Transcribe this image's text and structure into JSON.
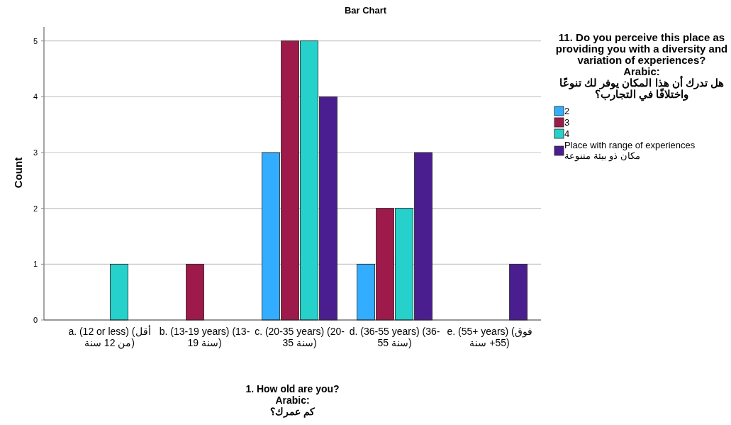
{
  "chart_data": {
    "type": "bar",
    "title": "Bar Chart",
    "xlabel": "1. How old are you?\nArabic:\nكم عمرك؟",
    "ylabel": "Count",
    "categories": [
      "a. (12 or less) (أقل من 12 سنة)",
      "b. (13-19 years) (13-19 سنة)",
      "c. (20-35 years) (20-35 سنة)",
      "d. (36-55 years) (36-55 سنة)",
      "e. (55+ years) (فوق 55+ سنة)"
    ],
    "series": [
      {
        "name": "2",
        "color": "#33adff",
        "values": [
          null,
          null,
          3,
          1,
          null
        ]
      },
      {
        "name": "3",
        "color": "#9e1a4a",
        "values": [
          null,
          1,
          5,
          2,
          null
        ]
      },
      {
        "name": "4",
        "color": "#26d1cc",
        "values": [
          1,
          null,
          5,
          2,
          null
        ]
      },
      {
        "name": "Place with range of experiences\nمكان ذو بيئة متنوعة",
        "color": "#4b1e8f",
        "values": [
          null,
          null,
          4,
          3,
          1
        ]
      }
    ],
    "legend_title": "11. Do you perceive this place as providing you with a diversity and variation of experiences?\nArabic:\nهل تدرك أن هذا المكان يوفر لك تنوعًا واختلافًا في التجارب؟",
    "ylim": [
      0,
      5.25
    ],
    "yticks": [
      0,
      1,
      2,
      3,
      4,
      5
    ],
    "grid": "y",
    "legend": "right"
  }
}
